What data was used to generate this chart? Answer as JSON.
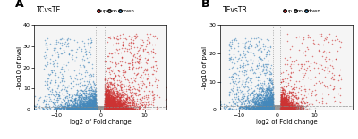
{
  "panel_A": {
    "title": "TCvsTE",
    "xlim": [
      -15,
      15
    ],
    "ylim": [
      0,
      40
    ],
    "xticks": [
      -10,
      0,
      10
    ],
    "yticks": [
      0,
      10,
      20,
      30,
      40
    ],
    "xlabel": "log2 of Fold change",
    "ylabel": "-log10 of pval",
    "hline_y": 1.3,
    "vline_x1": -1.0,
    "vline_x2": 1.0,
    "fc_threshold": 1.0,
    "pval_threshold": 1.3,
    "seed": 42,
    "label": "A",
    "up_fc_scale": 2.0,
    "up_pval_scale": 3.0,
    "down_fc_scale": 2.5,
    "down_pval_scale": 2.5,
    "no_fc_std": 2.5,
    "no_pval_scale": 0.5,
    "n_up": 2800,
    "n_down": 2200,
    "n_no": 12000,
    "n_scatter_up": 400,
    "n_scatter_down": 300,
    "scatter_up_fc_min": 1.5,
    "scatter_down_fc_max": -1.5
  },
  "panel_B": {
    "title": "TEvsTR",
    "xlim": [
      -15,
      20
    ],
    "ylim": [
      0,
      30
    ],
    "xticks": [
      -10,
      0,
      10
    ],
    "yticks": [
      0,
      10,
      20,
      30
    ],
    "xlabel": "log2 of Fold change",
    "ylabel": "-log10 of pval",
    "hline_y": 1.3,
    "vline_x1": -1.0,
    "vline_x2": 1.0,
    "fc_threshold": 1.0,
    "pval_threshold": 1.3,
    "seed": 123,
    "label": "B",
    "up_fc_scale": 1.5,
    "up_pval_scale": 2.0,
    "down_fc_scale": 2.5,
    "down_pval_scale": 2.5,
    "no_fc_std": 2.5,
    "no_pval_scale": 0.5,
    "n_up": 1200,
    "n_down": 2000,
    "n_no": 12000,
    "n_scatter_up": 200,
    "n_scatter_down": 350,
    "scatter_up_fc_min": 1.5,
    "scatter_down_fc_max": -1.5
  },
  "color_up": "#cc3333",
  "color_down": "#4488bb",
  "color_no": "#999999",
  "dot_size": 1.2,
  "alpha_up": 0.6,
  "alpha_down": 0.6,
  "alpha_no": 0.4,
  "bg_color": "#f5f5f5",
  "fig_bg": "#ffffff"
}
